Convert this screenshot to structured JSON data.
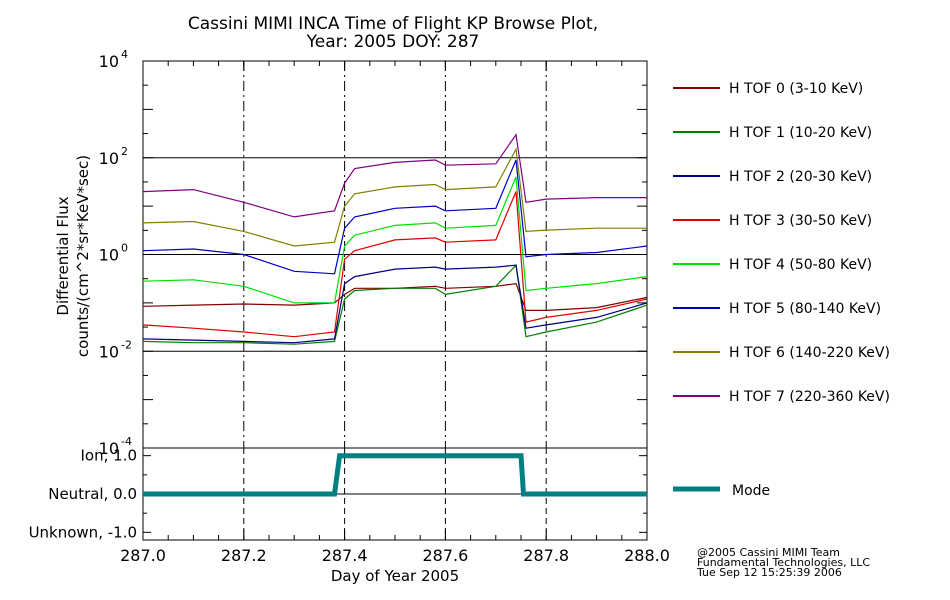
{
  "title": {
    "line1": "Cassini MIMI INCA Time of Flight KP Browse Plot,",
    "line2": "Year: 2005 DOY: 287"
  },
  "credit": {
    "line1": "@2005 Cassini MIMI Team",
    "line2": "Fundamental Technologies, LLC",
    "line3": "Tue Sep 12 15:25:39 2006"
  },
  "chart_data": [
    {
      "type": "line",
      "xlabel": "Day of Year 2005",
      "ylabel_line1": "Differential Flux",
      "ylabel_line2": "counts/(cm^2*sr*KeV*sec)",
      "xlim": [
        287.0,
        288.0
      ],
      "ylim": [
        0.0001,
        10000
      ],
      "yscale": "log",
      "x_ticks": [
        "287.0",
        "287.2",
        "287.4",
        "287.6",
        "287.8",
        "288.0"
      ],
      "y_ticks": [
        {
          "base": "10",
          "exp": "4",
          "value": 10000
        },
        {
          "base": "10",
          "exp": "2",
          "value": 100
        },
        {
          "base": "10",
          "exp": "0",
          "value": 1
        },
        {
          "base": "10",
          "exp": "-2",
          "value": 0.01
        },
        {
          "base": "10",
          "exp": "-4",
          "value": 0.0001
        }
      ],
      "vertical_dashed_lines_at": [
        287.2,
        287.4,
        287.6,
        287.8
      ],
      "horizontal_lines_at": [
        100,
        1,
        0.01
      ],
      "legend_placement": "right",
      "series": [
        {
          "name": "H TOF 0 (3-10 KeV)",
          "color": "#800000",
          "points": [
            [
              287.0,
              0.085
            ],
            [
              287.1,
              0.09
            ],
            [
              287.2,
              0.095
            ],
            [
              287.3,
              0.09
            ],
            [
              287.38,
              0.1
            ],
            [
              287.4,
              0.15
            ],
            [
              287.42,
              0.2
            ],
            [
              287.5,
              0.2
            ],
            [
              287.58,
              0.22
            ],
            [
              287.6,
              0.2
            ],
            [
              287.7,
              0.22
            ],
            [
              287.74,
              0.25
            ],
            [
              287.76,
              0.07
            ],
            [
              287.8,
              0.07
            ],
            [
              287.9,
              0.08
            ],
            [
              288.0,
              0.13
            ]
          ]
        },
        {
          "name": "H TOF 1 (10-20 KeV)",
          "color": "#008000",
          "points": [
            [
              287.0,
              0.016
            ],
            [
              287.1,
              0.015
            ],
            [
              287.2,
              0.015
            ],
            [
              287.3,
              0.014
            ],
            [
              287.38,
              0.016
            ],
            [
              287.4,
              0.12
            ],
            [
              287.42,
              0.18
            ],
            [
              287.5,
              0.2
            ],
            [
              287.58,
              0.2
            ],
            [
              287.6,
              0.15
            ],
            [
              287.7,
              0.22
            ],
            [
              287.74,
              0.6
            ],
            [
              287.76,
              0.02
            ],
            [
              287.8,
              0.025
            ],
            [
              287.9,
              0.04
            ],
            [
              288.0,
              0.09
            ]
          ]
        },
        {
          "name": "H TOF 2 (20-30 KeV)",
          "color": "#000080",
          "points": [
            [
              287.0,
              0.018
            ],
            [
              287.1,
              0.017
            ],
            [
              287.2,
              0.016
            ],
            [
              287.3,
              0.015
            ],
            [
              287.38,
              0.018
            ],
            [
              287.4,
              0.25
            ],
            [
              287.42,
              0.35
            ],
            [
              287.5,
              0.5
            ],
            [
              287.58,
              0.55
            ],
            [
              287.6,
              0.5
            ],
            [
              287.7,
              0.55
            ],
            [
              287.74,
              0.6
            ],
            [
              287.76,
              0.03
            ],
            [
              287.8,
              0.035
            ],
            [
              287.9,
              0.05
            ],
            [
              288.0,
              0.1
            ]
          ]
        },
        {
          "name": "H TOF 3 (30-50 KeV)",
          "color": "#e00000",
          "points": [
            [
              287.0,
              0.035
            ],
            [
              287.1,
              0.03
            ],
            [
              287.2,
              0.025
            ],
            [
              287.3,
              0.02
            ],
            [
              287.38,
              0.025
            ],
            [
              287.4,
              0.8
            ],
            [
              287.42,
              1.2
            ],
            [
              287.5,
              2.0
            ],
            [
              287.58,
              2.2
            ],
            [
              287.6,
              1.8
            ],
            [
              287.7,
              2.0
            ],
            [
              287.74,
              20
            ],
            [
              287.76,
              0.04
            ],
            [
              287.8,
              0.05
            ],
            [
              287.9,
              0.07
            ],
            [
              288.0,
              0.12
            ]
          ]
        },
        {
          "name": "H TOF 4 (50-80 KeV)",
          "color": "#00e000",
          "points": [
            [
              287.0,
              0.28
            ],
            [
              287.1,
              0.3
            ],
            [
              287.2,
              0.22
            ],
            [
              287.3,
              0.1
            ],
            [
              287.38,
              0.1
            ],
            [
              287.4,
              1.5
            ],
            [
              287.42,
              2.5
            ],
            [
              287.5,
              4.0
            ],
            [
              287.58,
              4.5
            ],
            [
              287.6,
              3.5
            ],
            [
              287.7,
              4.0
            ],
            [
              287.74,
              40
            ],
            [
              287.76,
              0.18
            ],
            [
              287.8,
              0.2
            ],
            [
              287.9,
              0.25
            ],
            [
              288.0,
              0.35
            ]
          ]
        },
        {
          "name": "H TOF 5 (80-140 KeV)",
          "color": "#0000c0",
          "points": [
            [
              287.0,
              1.2
            ],
            [
              287.1,
              1.3
            ],
            [
              287.2,
              1.0
            ],
            [
              287.3,
              0.45
            ],
            [
              287.38,
              0.4
            ],
            [
              287.4,
              3.5
            ],
            [
              287.42,
              6.0
            ],
            [
              287.5,
              9.0
            ],
            [
              287.58,
              10.0
            ],
            [
              287.6,
              8.0
            ],
            [
              287.7,
              9.0
            ],
            [
              287.74,
              90
            ],
            [
              287.76,
              0.9
            ],
            [
              287.8,
              1.0
            ],
            [
              287.9,
              1.1
            ],
            [
              288.0,
              1.5
            ]
          ]
        },
        {
          "name": "H TOF 6 (140-220 KeV)",
          "color": "#808000",
          "points": [
            [
              287.0,
              4.5
            ],
            [
              287.1,
              4.8
            ],
            [
              287.2,
              3.0
            ],
            [
              287.3,
              1.5
            ],
            [
              287.38,
              1.8
            ],
            [
              287.4,
              10
            ],
            [
              287.42,
              18
            ],
            [
              287.5,
              25
            ],
            [
              287.58,
              28
            ],
            [
              287.6,
              22
            ],
            [
              287.7,
              25
            ],
            [
              287.74,
              150
            ],
            [
              287.76,
              3.0
            ],
            [
              287.8,
              3.2
            ],
            [
              287.9,
              3.5
            ],
            [
              288.0,
              3.5
            ]
          ]
        },
        {
          "name": "H TOF 7 (220-360 KeV)",
          "color": "#800080",
          "points": [
            [
              287.0,
              20
            ],
            [
              287.1,
              22
            ],
            [
              287.2,
              12
            ],
            [
              287.3,
              6
            ],
            [
              287.38,
              8
            ],
            [
              287.4,
              30
            ],
            [
              287.42,
              60
            ],
            [
              287.5,
              80
            ],
            [
              287.58,
              90
            ],
            [
              287.6,
              70
            ],
            [
              287.7,
              75
            ],
            [
              287.74,
              300
            ],
            [
              287.76,
              12
            ],
            [
              287.8,
              14
            ],
            [
              287.9,
              15
            ],
            [
              288.0,
              15
            ]
          ]
        }
      ]
    },
    {
      "type": "line",
      "xlim": [
        287.0,
        288.0
      ],
      "ylim": [
        -1.2,
        1.2
      ],
      "y_ticks": [
        {
          "label": "Ion, 1.0",
          "value": 1.0
        },
        {
          "label": "Neutral, 0.0",
          "value": 0.0
        },
        {
          "label": "Unknown, -1.0",
          "value": -1.0
        }
      ],
      "vertical_dashed_lines_at": [
        287.2,
        287.4,
        287.6,
        287.8
      ],
      "horizontal_lines_at": [
        0.0
      ],
      "series": [
        {
          "name": "Mode",
          "color": "#008080",
          "points": [
            [
              287.0,
              0
            ],
            [
              287.38,
              0
            ],
            [
              287.39,
              1
            ],
            [
              287.75,
              1
            ],
            [
              287.755,
              0
            ],
            [
              288.0,
              0
            ]
          ]
        }
      ]
    }
  ]
}
